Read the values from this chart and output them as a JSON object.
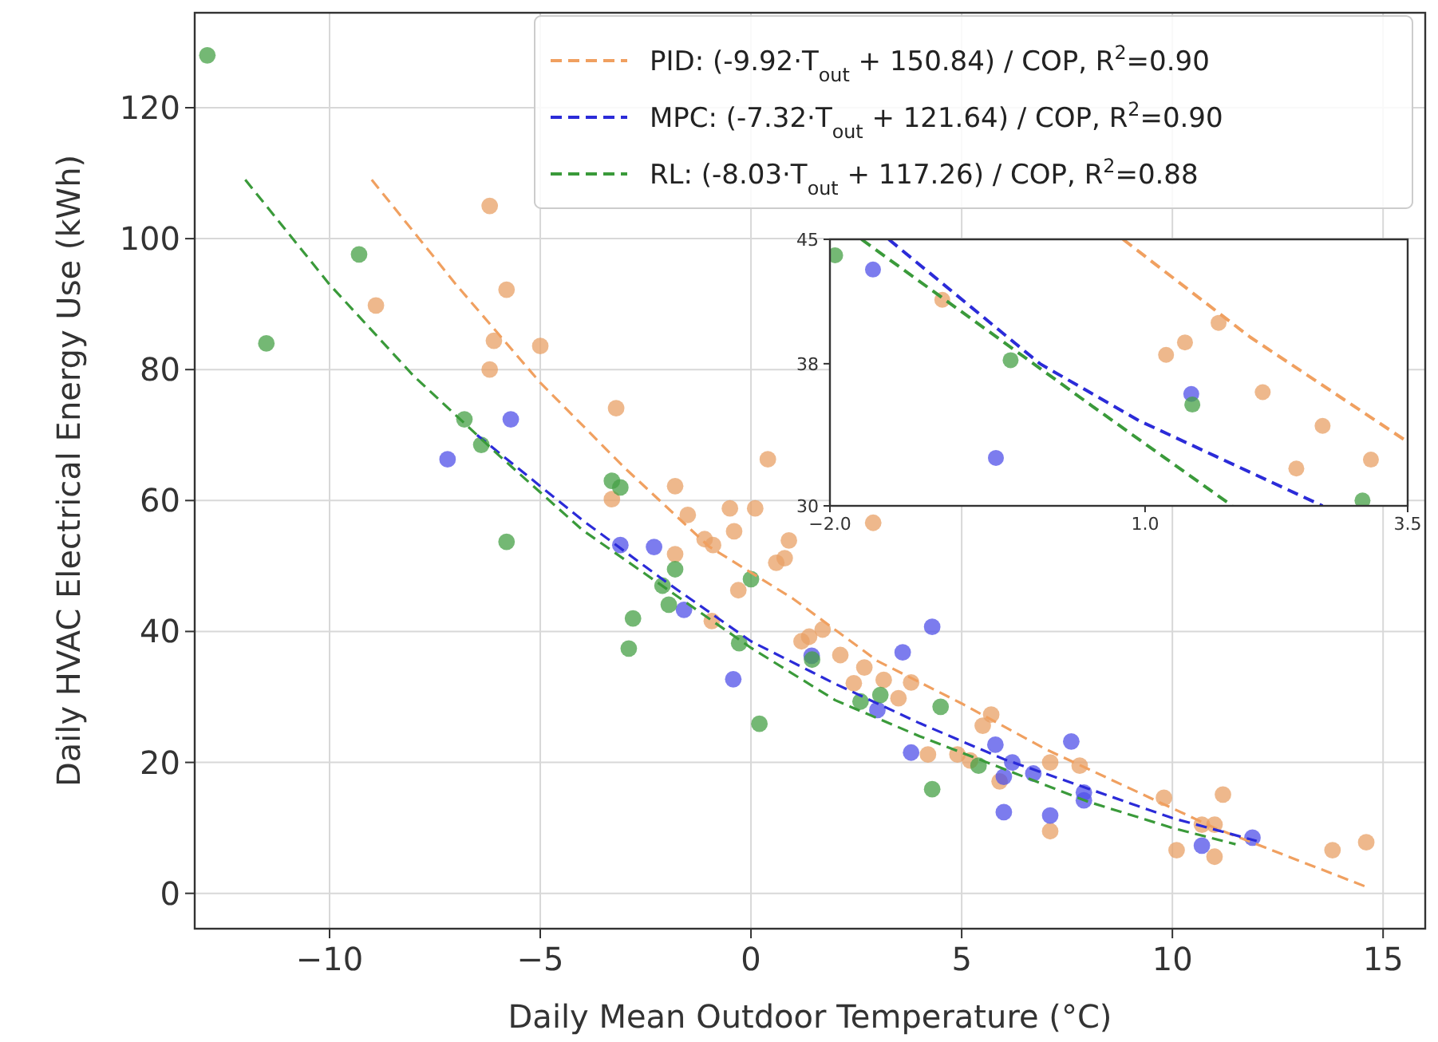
{
  "chart_data": [
    {
      "type": "scatter",
      "xlabel": "Daily Mean Outdoor Temperature (°C)",
      "ylabel": "Daily HVAC Electrical Energy Use (kWh)",
      "xlim": [
        -13.2,
        16
      ],
      "ylim": [
        -5.4,
        134.5
      ],
      "xticks": [
        {
          "value": -10,
          "label": "−10"
        },
        {
          "value": -5,
          "label": "−5"
        },
        0,
        5,
        10,
        15
      ],
      "yticks": [
        0,
        20,
        40,
        60,
        80,
        100,
        120
      ],
      "grid": true,
      "legend": "top right",
      "marker": "circle",
      "series": [
        {
          "color": "#e8a066",
          "x": [
            -8.9,
            -6.2,
            -5.8,
            -6.1,
            -5.0,
            -6.2,
            -3.2,
            -3.3,
            -1.8,
            -1.5,
            -0.5,
            0.1,
            -0.4,
            -1.1,
            -0.9,
            -1.8,
            -0.3,
            -0.93,
            0.4,
            2.9,
            0.9,
            0.8,
            0.6,
            1.2,
            1.38,
            1.7,
            2.12,
            2.69,
            2.44,
            3.15,
            3.8,
            3.5,
            4.2,
            4.9,
            5.2,
            5.7,
            5.5,
            5.9,
            7.1,
            7.1,
            7.8,
            9.8,
            10.1,
            11.2,
            10.7,
            11.0,
            11.0,
            13.8,
            14.6
          ],
          "values": [
            89.8,
            105,
            92.2,
            84.4,
            83.6,
            80,
            74.1,
            60.2,
            62.2,
            57.8,
            58.8,
            58.8,
            55.3,
            54.1,
            53.2,
            51.8,
            46.3,
            41.6,
            66.3,
            56.6,
            53.9,
            51.2,
            50.5,
            38.5,
            39.2,
            40.3,
            36.4,
            34.5,
            32.1,
            32.6,
            32.2,
            29.8,
            21.2,
            21.2,
            20.3,
            27.3,
            25.6,
            17.1,
            20,
            9.5,
            19.5,
            14.6,
            6.6,
            15.1,
            10.5,
            10.5,
            5.6,
            6.6,
            7.8
          ]
        },
        {
          "color": "#5050e8",
          "x": [
            -7.2,
            -5.7,
            -3.1,
            -2.3,
            -1.59,
            -0.42,
            1.44,
            4.3,
            3.6,
            3.0,
            3.8,
            5.8,
            6.2,
            6.0,
            6.0,
            6.7,
            7.1,
            7.6,
            7.9,
            7.9,
            10.7,
            11.9
          ],
          "values": [
            66.3,
            72.4,
            53.2,
            52.9,
            43.3,
            32.7,
            36.3,
            40.7,
            36.8,
            28,
            21.5,
            22.7,
            20,
            17.8,
            12.4,
            18.3,
            11.9,
            23.2,
            15.4,
            14.2,
            7.3,
            8.5
          ]
        },
        {
          "color": "#45a045",
          "x": [
            -12.9,
            -11.5,
            -9.3,
            -6.8,
            -6.4,
            -5.8,
            -3.3,
            -3.1,
            -1.8,
            -1.95,
            -2.8,
            -2.9,
            -0.28,
            0.2,
            0.0,
            -2.1,
            1.45,
            2.6,
            3.07,
            4.5,
            4.3,
            5.4
          ],
          "values": [
            128,
            84,
            97.6,
            72.4,
            68.5,
            53.7,
            63,
            62,
            49.5,
            44.1,
            42,
            37.4,
            38.2,
            25.9,
            48,
            47,
            35.7,
            29.3,
            30.3,
            28.5,
            15.9,
            19.5
          ]
        },
        {
          "type": "line",
          "name": "PID: (-9.92·T$_{out}$ + 150.84) / COP, R$^{2}$=0.90",
          "color": "#f0a060",
          "line_style": "dashed",
          "marker": "none",
          "x": [
            -9,
            -7,
            -5,
            -3,
            -1,
            1,
            3,
            5,
            7,
            9,
            11,
            13,
            14.6
          ],
          "values": [
            109,
            93,
            78,
            65,
            53,
            45,
            35.5,
            29,
            22,
            16,
            10,
            5,
            1
          ]
        },
        {
          "type": "line",
          "name": "MPC: (-7.32·T$_{out}$ + 121.64) / COP, R$^{2}$=0.90",
          "color": "#2b2bd8",
          "line_style": "dashed",
          "marker": "none",
          "x": [
            -6.5,
            -4,
            -2,
            0,
            2,
            4,
            6,
            8,
            10,
            12
          ],
          "values": [
            70,
            57,
            47.5,
            38.5,
            32,
            26,
            20.5,
            16,
            11.5,
            8
          ]
        },
        {
          "type": "line",
          "name": "RL: (-8.03·T$_{out}$ + 117.26) / COP, R$^{2}$=0.88",
          "color": "#3a9a3a",
          "line_style": "dashed",
          "marker": "none",
          "x": [
            -12,
            -10,
            -8,
            -6,
            -4,
            -2,
            0,
            2,
            4,
            6,
            8,
            10,
            11.5
          ],
          "values": [
            109,
            93,
            79,
            67,
            55.5,
            46.5,
            37.5,
            29.5,
            24,
            19,
            14,
            10,
            7.5
          ]
        }
      ]
    },
    {
      "type": "scatter",
      "xlim": [
        -2,
        3.5
      ],
      "ylim": [
        30,
        45
      ],
      "xticks": [
        {
          "value": -2,
          "label": "−2.0"
        },
        {
          "value": 1,
          "label": "1.0"
        },
        {
          "value": 3.5,
          "label": "3.5"
        }
      ],
      "yticks": [
        30,
        38,
        45
      ],
      "marker": "circle",
      "series": [
        {
          "color": "#e8a066",
          "x": [
            -0.93,
            1.2,
            1.38,
            1.7,
            2.12,
            2.44,
            2.69,
            3.15
          ],
          "values": [
            41.6,
            38.5,
            39.2,
            40.3,
            36.4,
            32.1,
            34.5,
            32.6
          ]
        },
        {
          "color": "#5050e8",
          "x": [
            -1.59,
            -0.42,
            1.44
          ],
          "values": [
            43.3,
            32.7,
            36.3
          ]
        },
        {
          "color": "#45a045",
          "x": [
            -1.95,
            -0.28,
            1.45,
            3.07
          ],
          "values": [
            44.1,
            38.2,
            35.7,
            30.3
          ]
        },
        {
          "type": "line",
          "color": "#f0a060",
          "line_style": "dashed",
          "marker": "none",
          "x": [
            0.79,
            2,
            3.5
          ],
          "values": [
            45,
            39.5,
            33.6
          ]
        },
        {
          "type": "line",
          "color": "#2b2bd8",
          "line_style": "dashed",
          "marker": "none",
          "x": [
            -1.44,
            0,
            0.94,
            2.69
          ],
          "values": [
            45,
            38,
            34.8,
            30
          ]
        },
        {
          "type": "line",
          "color": "#3a9a3a",
          "line_style": "dashed",
          "marker": "none",
          "x": [
            -1.7,
            0.5,
            1.83
          ],
          "values": [
            45,
            35.6,
            30
          ]
        }
      ]
    }
  ]
}
